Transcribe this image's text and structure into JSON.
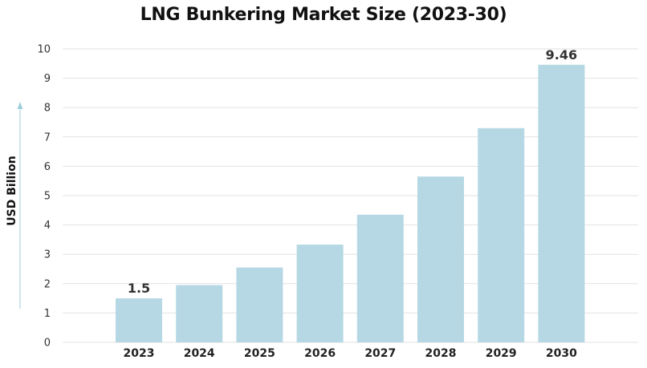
{
  "chart_data": {
    "type": "bar",
    "title": "LNG Bunkering Market Size (2023-30)",
    "xlabel": "",
    "ylabel": "USD Billion",
    "categories": [
      "2023",
      "2024",
      "2025",
      "2026",
      "2027",
      "2028",
      "2029",
      "2030"
    ],
    "values": [
      1.5,
      1.95,
      2.55,
      3.33,
      4.35,
      5.65,
      7.3,
      9.46
    ],
    "data_labels": [
      {
        "index": 0,
        "text": "1.5"
      },
      {
        "index": 7,
        "text": "9.46"
      }
    ],
    "ylim": [
      0,
      10
    ],
    "yticks": [
      "0",
      "1",
      "2",
      "3",
      "4",
      "5",
      "6",
      "7",
      "8",
      "9",
      "10"
    ],
    "grid": true,
    "legend": "none",
    "colors": {
      "bar": "#b6d8e4",
      "grid": "#e2e2e2",
      "axis_arrow": "#9fcfdc"
    }
  }
}
